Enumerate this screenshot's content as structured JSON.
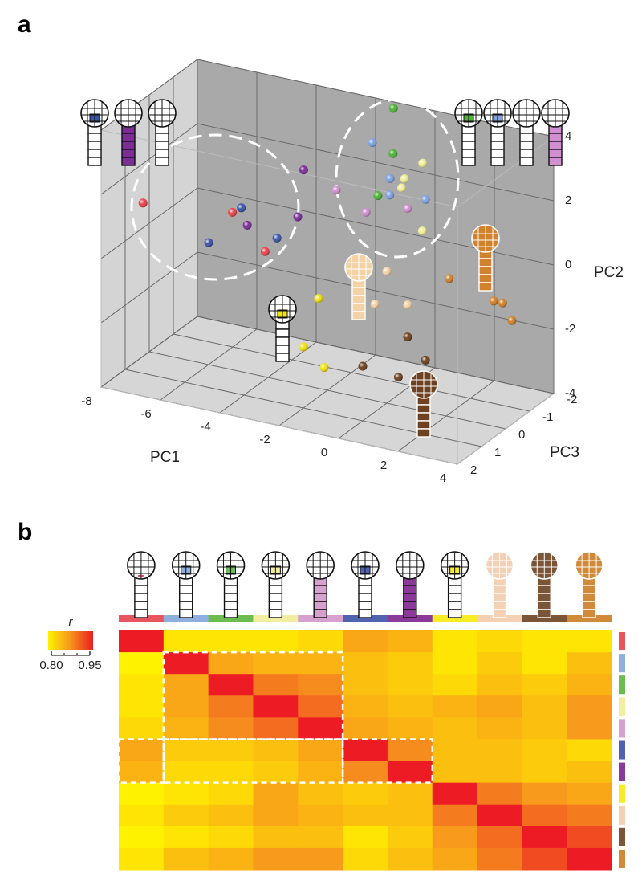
{
  "chart_data": [
    {
      "type": "scatter3d",
      "label": "a",
      "xlabel": "PC1",
      "ylabel": "PC2",
      "zlabel": "PC3",
      "xlim": [
        -8,
        4
      ],
      "ylim": [
        -4,
        4
      ],
      "zlim": [
        -2,
        2
      ],
      "xticks": [
        -8,
        -6,
        -4,
        -2,
        0,
        2,
        4
      ],
      "yticks": [
        -4,
        -2,
        0,
        2,
        4
      ],
      "zticks": [
        -2,
        -1,
        0,
        1,
        2
      ],
      "series": [
        {
          "color": "#e8434a",
          "x": [
            -7.4,
            -5.2,
            -4.1
          ],
          "y": [
            1.3,
            0.9,
            -0.1
          ],
          "z": [
            1,
            0,
            0
          ]
        },
        {
          "color": "#7fa3e0",
          "x": [
            -1.3,
            -0.7,
            0.1,
            1.3
          ],
          "y": [
            3.3,
            2.3,
            2.5,
            2.6
          ],
          "z": [
            -1,
            -1,
            0,
            0
          ]
        },
        {
          "color": "#4fb33a",
          "x": [
            -1.4,
            -0.6,
            -0.3
          ],
          "y": [
            3.8,
            3.1,
            2.4
          ],
          "z": [
            -2,
            -1,
            0
          ]
        },
        {
          "color": "#eeee9a",
          "x": [
            0.4,
            0.6,
            0.5,
            1.2
          ],
          "y": [
            3.0,
            3.1,
            2.8,
            1.6
          ],
          "z": [
            -1,
            0,
            0,
            0
          ]
        },
        {
          "color": "#d08fd0",
          "x": [
            -1.7,
            -0.7,
            0.7
          ],
          "y": [
            2.3,
            1.8,
            2.2
          ],
          "z": [
            0,
            0,
            0
          ]
        },
        {
          "color": "#3a55a8",
          "x": [
            -4.9,
            -6.0,
            -3.7
          ],
          "y": [
            1.1,
            -0.2,
            0.4
          ],
          "z": [
            0,
            0,
            0
          ]
        },
        {
          "color": "#7b2d96",
          "x": [
            -4.7,
            -2.8,
            -3.0
          ],
          "y": [
            0.6,
            2.7,
            1.2
          ],
          "z": [
            0,
            0,
            0
          ]
        },
        {
          "color": "#f2e30f",
          "x": [
            -2.3,
            -2.0,
            -1.3
          ],
          "y": [
            -1.2,
            -2.1,
            -2.6
          ],
          "z": [
            0,
            1,
            1
          ]
        },
        {
          "color": "#f3d3a6",
          "x": [
            0.0,
            -0.4,
            0.7
          ],
          "y": [
            0.1,
            -1.0,
            -0.8
          ],
          "z": [
            0,
            0,
            0
          ]
        },
        {
          "color": "#6e4220",
          "x": [
            0.7,
            1.3,
            0.0,
            1.2
          ],
          "y": [
            -1.8,
            -2.4,
            -2.3,
            -2.4
          ],
          "z": [
            0,
            0,
            1,
            1
          ]
        },
        {
          "color": "#d0822c",
          "x": [
            2.1,
            3.6,
            3.9,
            3.4
          ],
          "y": [
            0.3,
            -0.1,
            -0.1,
            -1.3
          ],
          "z": [
            0,
            0,
            0,
            -1
          ]
        }
      ]
    },
    {
      "type": "heatmap",
      "label": "b",
      "colorbar_label": "r",
      "colors": [
        "#e8555e",
        "#8fb0df",
        "#6cbd4f",
        "#f2eda0",
        "#d6a0cf",
        "#4f63b0",
        "#8c3a9a",
        "#f7ec25",
        "#f4d0b5",
        "#7a5538",
        "#d08a3a"
      ],
      "clim": [
        0.8,
        0.95
      ],
      "colormap": [
        "#fff200",
        "#f7941d",
        "#ed1c24"
      ],
      "colorbar_ticks": [
        {
          "value": 0.8,
          "label": "0.80"
        },
        {
          "value": 0.95,
          "label": "0.95"
        }
      ],
      "colorbar_minor_ticks": [
        0.85,
        0.9
      ],
      "values": [
        [
          1,
          0.81,
          0.81,
          0.81,
          0.82,
          0.86,
          0.85,
          0.81,
          0.82,
          0.81,
          0.81
        ],
        [
          0.8,
          1,
          0.86,
          0.85,
          0.85,
          0.84,
          0.83,
          0.81,
          0.83,
          0.81,
          0.84
        ],
        [
          0.81,
          0.86,
          1,
          0.89,
          0.88,
          0.84,
          0.83,
          0.82,
          0.84,
          0.83,
          0.85
        ],
        [
          0.81,
          0.86,
          0.89,
          1,
          0.9,
          0.85,
          0.84,
          0.85,
          0.86,
          0.84,
          0.87
        ],
        [
          0.82,
          0.85,
          0.88,
          0.9,
          1,
          0.86,
          0.85,
          0.84,
          0.85,
          0.84,
          0.87
        ],
        [
          0.86,
          0.83,
          0.83,
          0.84,
          0.86,
          1,
          0.88,
          0.84,
          0.84,
          0.83,
          0.82
        ],
        [
          0.85,
          0.82,
          0.82,
          0.83,
          0.85,
          0.88,
          1,
          0.84,
          0.84,
          0.83,
          0.84
        ],
        [
          0.8,
          0.81,
          0.82,
          0.86,
          0.84,
          0.83,
          0.84,
          1,
          0.89,
          0.87,
          0.86
        ],
        [
          0.81,
          0.83,
          0.84,
          0.86,
          0.85,
          0.84,
          0.84,
          0.89,
          1,
          0.9,
          0.89
        ],
        [
          0.8,
          0.81,
          0.82,
          0.84,
          0.84,
          0.81,
          0.83,
          0.87,
          0.9,
          1,
          0.92
        ],
        [
          0.81,
          0.84,
          0.85,
          0.87,
          0.87,
          0.82,
          0.84,
          0.86,
          0.89,
          0.92,
          1
        ]
      ]
    }
  ]
}
